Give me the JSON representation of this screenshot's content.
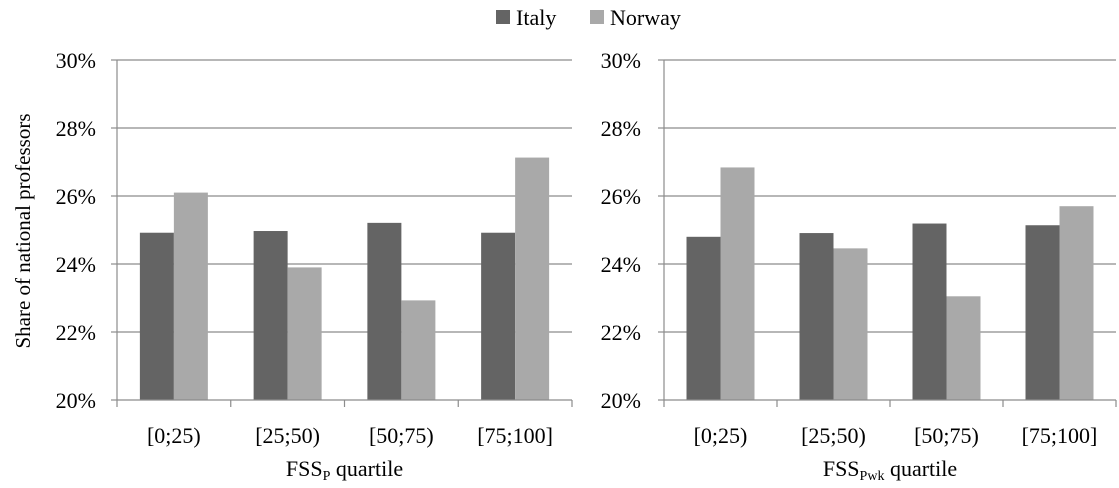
{
  "legend": {
    "placement": "top-center",
    "entries": [
      {
        "label": "Italy",
        "color": "#646464"
      },
      {
        "label": "Norway",
        "color": "#a9a9a9"
      }
    ]
  },
  "shared_ylabel": "Share of national professors",
  "chart_data": [
    {
      "type": "bar",
      "categories": [
        "[0;25)",
        "[25;50)",
        "[50;75)",
        "[75;100]"
      ],
      "series": [
        {
          "name": "Italy",
          "values": [
            24.92,
            24.97,
            25.21,
            24.92
          ]
        },
        {
          "name": "Norway",
          "values": [
            26.1,
            23.9,
            22.93,
            27.13
          ]
        }
      ],
      "xlabel": {
        "main": "FSS",
        "sub": "P",
        "suffix": " quartile"
      },
      "ylabel": "Share of national professors",
      "ylim": [
        20,
        30
      ],
      "yticks": [
        20,
        22,
        24,
        26,
        28,
        30
      ],
      "ytick_suffix": "%",
      "grid": true
    },
    {
      "type": "bar",
      "categories": [
        "[0;25)",
        "[25;50)",
        "[50;75)",
        "[75;100]"
      ],
      "series": [
        {
          "name": "Italy",
          "values": [
            24.8,
            24.91,
            25.19,
            25.14
          ]
        },
        {
          "name": "Norway",
          "values": [
            26.84,
            24.46,
            23.05,
            25.7
          ]
        }
      ],
      "xlabel": {
        "main": "FSS",
        "sub": "Pwk",
        "suffix": " quartile"
      },
      "ylabel": "",
      "ylim": [
        20,
        30
      ],
      "yticks": [
        20,
        22,
        24,
        26,
        28,
        30
      ],
      "ytick_suffix": "%",
      "grid": true
    }
  ]
}
